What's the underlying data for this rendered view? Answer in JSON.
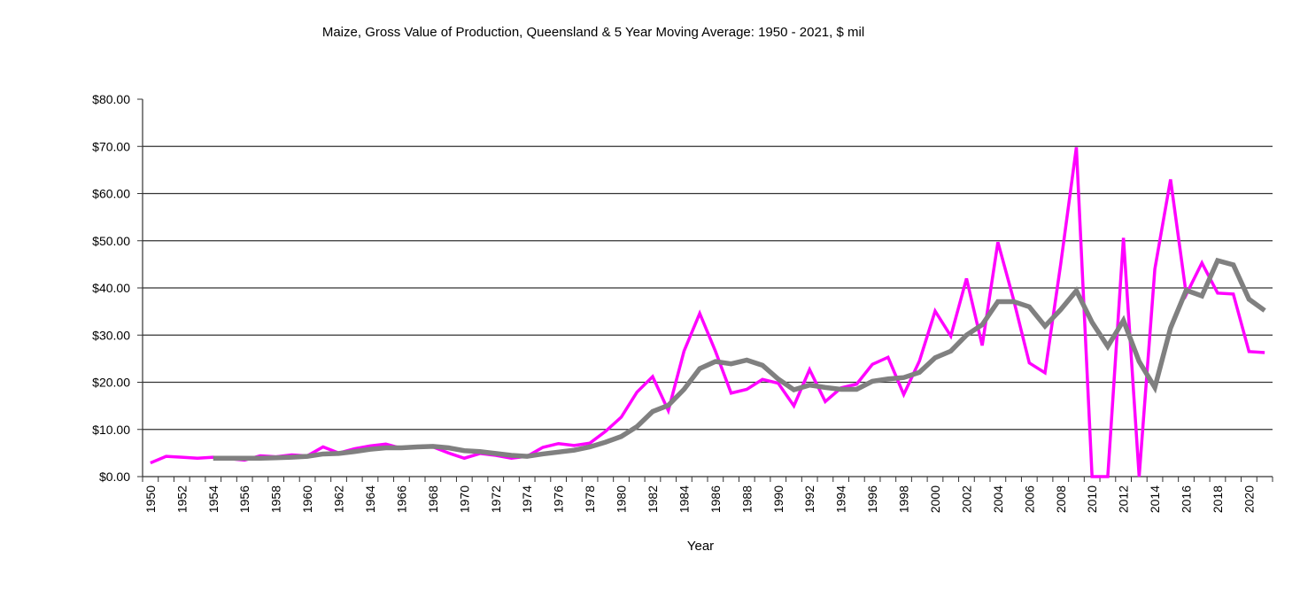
{
  "chart_data": {
    "type": "line",
    "title": "Maize, Gross Value of Production, Queensland & 5 Year Moving Average: 1950 - 2021, $ mil",
    "xlabel": "Year",
    "ylabel": "",
    "ylim": [
      0,
      80
    ],
    "yticks": [
      0,
      10,
      20,
      30,
      40,
      50,
      60,
      70,
      80
    ],
    "ytick_labels": [
      "$0.00",
      "$10.00",
      "$20.00",
      "$30.00",
      "$40.00",
      "$50.00",
      "$60.00",
      "$70.00",
      "$80.00"
    ],
    "grid": true,
    "legend": "none",
    "x": [
      1950,
      1951,
      1952,
      1953,
      1954,
      1955,
      1956,
      1957,
      1958,
      1959,
      1960,
      1961,
      1962,
      1963,
      1964,
      1965,
      1966,
      1967,
      1968,
      1969,
      1970,
      1971,
      1972,
      1973,
      1974,
      1975,
      1976,
      1977,
      1978,
      1979,
      1980,
      1981,
      1982,
      1983,
      1984,
      1985,
      1986,
      1987,
      1988,
      1989,
      1990,
      1991,
      1992,
      1993,
      1994,
      1995,
      1996,
      1997,
      1998,
      1999,
      2000,
      2001,
      2002,
      2003,
      2004,
      2005,
      2006,
      2007,
      2008,
      2009,
      2010,
      2011,
      2012,
      2013,
      2014,
      2015,
      2016,
      2017,
      2018,
      2019,
      2020,
      2021
    ],
    "xtick_labels": [
      "1950",
      "1952",
      "1954",
      "1956",
      "1958",
      "1960",
      "1962",
      "1964",
      "1966",
      "1968",
      "1970",
      "1972",
      "1974",
      "1976",
      "1978",
      "1980",
      "1982",
      "1984",
      "1986",
      "1988",
      "1990",
      "1992",
      "1994",
      "1996",
      "1998",
      "2000",
      "2002",
      "2004",
      "2006",
      "2008",
      "2010",
      "2012",
      "2014",
      "2016",
      "2018",
      "2020"
    ],
    "series": [
      {
        "name": "Gross Value of Production",
        "color": "#ff00ff",
        "values": [
          2.9,
          4.3,
          4.1,
          3.9,
          4.1,
          3.8,
          3.5,
          4.4,
          4.2,
          4.6,
          4.4,
          6.3,
          5.0,
          5.9,
          6.5,
          6.9,
          6.0,
          6.3,
          6.3,
          5.0,
          3.9,
          4.9,
          4.5,
          3.9,
          4.3,
          6.2,
          7.0,
          6.6,
          7.1,
          9.6,
          12.6,
          17.9,
          21.2,
          14.0,
          26.6,
          34.6,
          26.6,
          17.7,
          18.5,
          20.6,
          19.8,
          15.0,
          22.7,
          15.9,
          18.8,
          19.6,
          23.8,
          25.3,
          17.4,
          24.5,
          35.1,
          29.8,
          42.0,
          27.8,
          49.7,
          37.5,
          24.1,
          22.0,
          45.0,
          69.8,
          0,
          0,
          50.6,
          0,
          44.0,
          63.0,
          38.6,
          45.3,
          38.9,
          38.7,
          26.5,
          26.3
        ]
      },
      {
        "name": "5 Year Moving Average",
        "color": "#808080",
        "values": [
          null,
          null,
          null,
          null,
          3.9,
          3.9,
          3.9,
          3.9,
          4.0,
          4.1,
          4.3,
          4.8,
          4.9,
          5.3,
          5.8,
          6.1,
          6.1,
          6.3,
          6.4,
          6.1,
          5.5,
          5.3,
          4.9,
          4.5,
          4.3,
          4.8,
          5.2,
          5.6,
          6.3,
          7.3,
          8.5,
          10.6,
          13.8,
          15.1,
          18.5,
          22.9,
          24.4,
          23.9,
          24.7,
          23.6,
          20.7,
          18.4,
          19.4,
          18.9,
          18.5,
          18.5,
          20.2,
          20.7,
          21.0,
          22.1,
          25.2,
          26.6,
          30.0,
          32.2,
          37.1,
          37.1,
          36.0,
          31.9,
          35.4,
          39.4,
          32.7,
          27.6,
          33.1,
          24.4,
          18.9,
          31.5,
          39.5,
          38.3,
          45.8,
          44.9,
          37.6,
          35.2
        ]
      }
    ]
  }
}
